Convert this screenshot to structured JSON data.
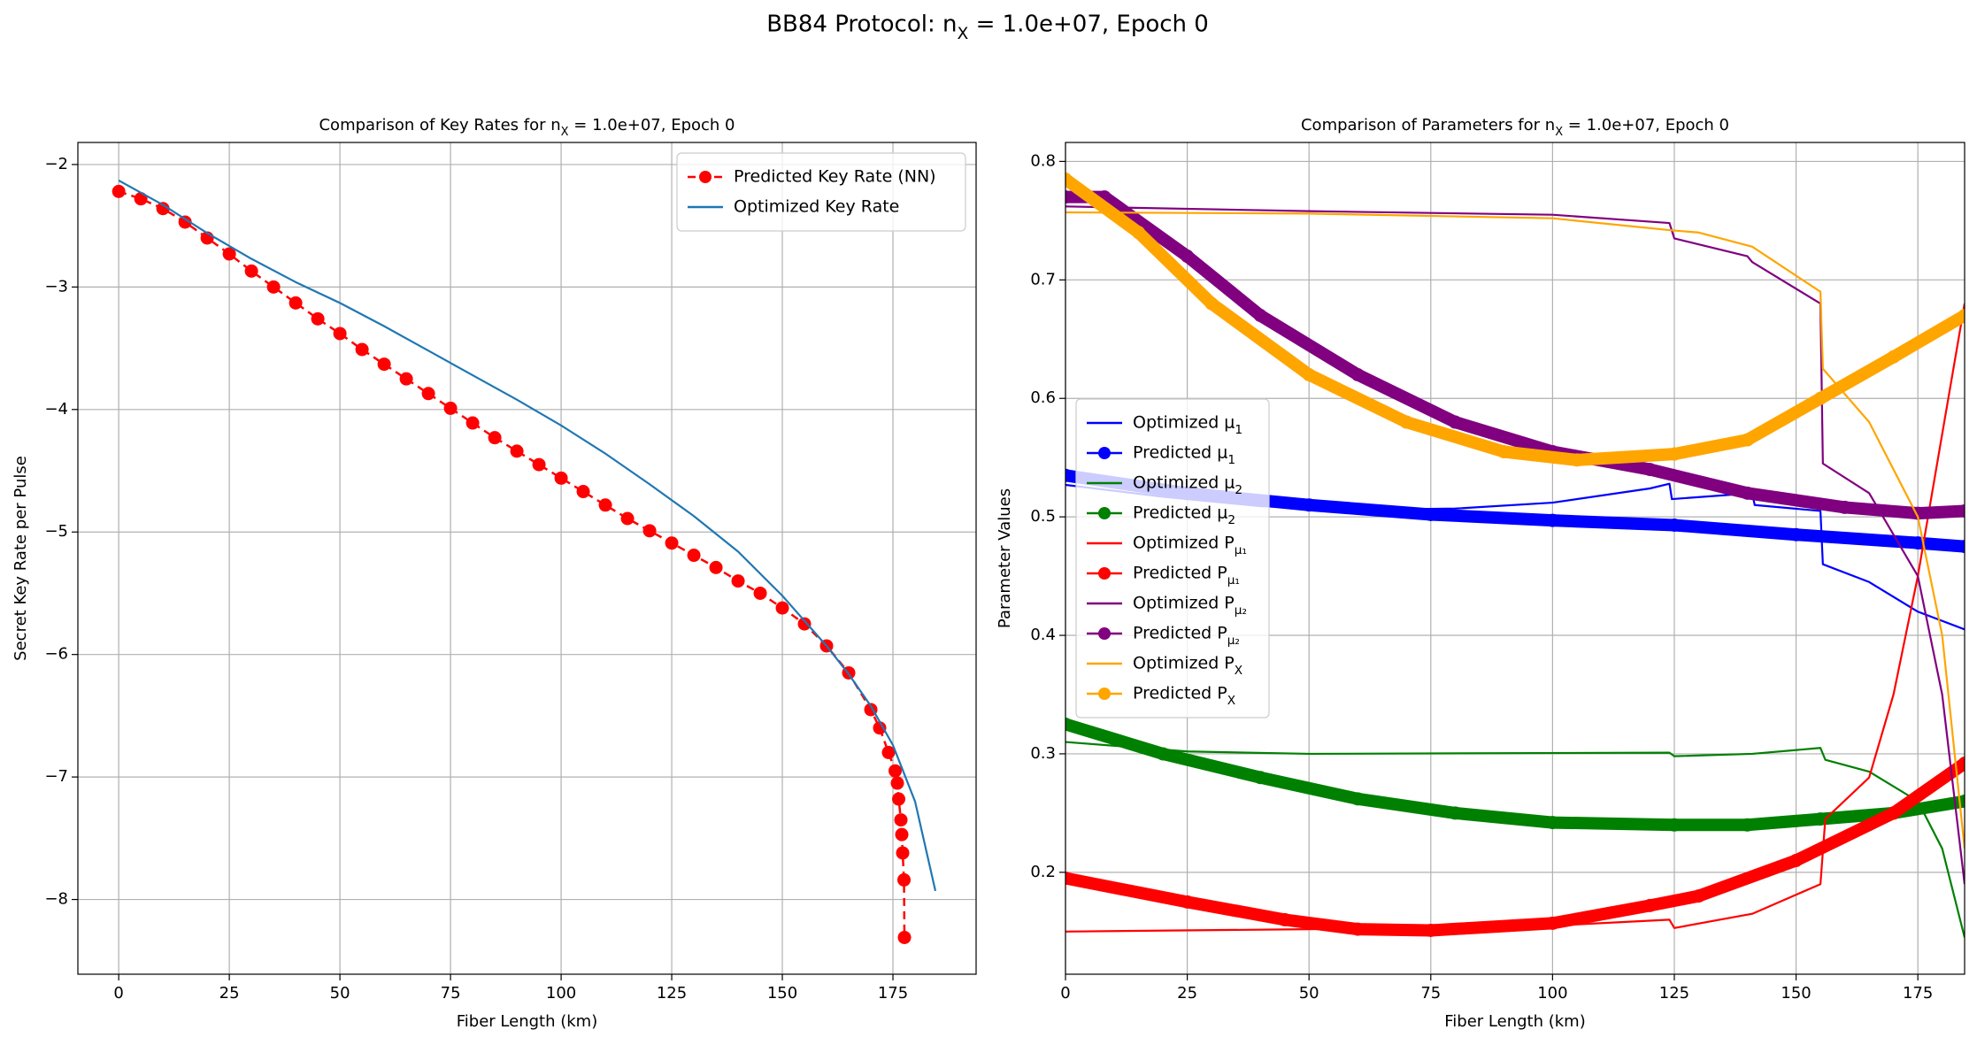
{
  "title": "BB84 Protocol: n_{X} = 1.0e+07, Epoch 0",
  "chart_data": [
    {
      "type": "line",
      "title": "Comparison of Key Rates for n_{X} = 1.0e+07, Epoch 0",
      "xlabel": "Fiber Length (km)",
      "ylabel": "Secret Key Rate per Pulse",
      "xlim": [
        -9.23,
        193.8
      ],
      "ylim": [
        -8.61,
        -1.82
      ],
      "xticks": [
        0,
        25,
        50,
        75,
        100,
        125,
        150,
        175
      ],
      "yticks": [
        {
          "value": -8,
          "label": "−8"
        },
        {
          "value": -7,
          "label": "−7"
        },
        {
          "value": -6,
          "label": "−6"
        },
        {
          "value": -5,
          "label": "−5"
        },
        {
          "value": -4,
          "label": "−4"
        },
        {
          "value": -3,
          "label": "−3"
        },
        {
          "value": -2,
          "label": "−2"
        }
      ],
      "grid": true,
      "legend": "upper right",
      "series": [
        {
          "name": "Predicted Key Rate (NN)",
          "color": "red",
          "linestyle": "dashed",
          "marker": "o",
          "x": [
            0,
            5,
            10,
            15,
            20,
            25,
            30,
            35,
            40,
            45,
            50,
            55,
            60,
            65,
            70,
            75,
            80,
            85,
            90,
            95,
            100,
            105,
            110,
            115,
            120,
            125,
            130,
            135,
            140,
            145,
            150,
            155,
            160,
            165,
            170,
            172,
            174,
            175.5,
            176,
            176.3,
            176.8,
            177,
            177.2,
            177.5,
            177.6
          ],
          "values": [
            -2.22,
            -2.28,
            -2.36,
            -2.47,
            -2.6,
            -2.73,
            -2.87,
            -3.0,
            -3.13,
            -3.26,
            -3.38,
            -3.51,
            -3.63,
            -3.75,
            -3.87,
            -3.99,
            -4.11,
            -4.23,
            -4.34,
            -4.45,
            -4.56,
            -4.67,
            -4.78,
            -4.89,
            -4.99,
            -5.09,
            -5.19,
            -5.29,
            -5.4,
            -5.5,
            -5.62,
            -5.75,
            -5.93,
            -6.15,
            -6.45,
            -6.6,
            -6.8,
            -6.95,
            -7.05,
            -7.18,
            -7.35,
            -7.47,
            -7.62,
            -7.84,
            -8.31
          ]
        },
        {
          "name": "Optimized Key Rate",
          "color": "#1f77b4",
          "linestyle": "solid",
          "x": [
            0,
            10,
            20,
            30,
            40,
            50,
            60,
            70,
            80,
            90,
            100,
            110,
            120,
            130,
            140,
            150,
            160,
            165,
            170,
            175,
            180,
            184.6
          ],
          "values": [
            -2.13,
            -2.33,
            -2.56,
            -2.77,
            -2.96,
            -3.13,
            -3.32,
            -3.52,
            -3.72,
            -3.92,
            -4.13,
            -4.36,
            -4.61,
            -4.87,
            -5.16,
            -5.52,
            -5.93,
            -6.16,
            -6.42,
            -6.74,
            -7.2,
            -7.93
          ]
        }
      ]
    },
    {
      "type": "line",
      "title": "Comparison of Parameters for n_{X} = 1.0e+07, Epoch 0",
      "xlabel": "Fiber Length (km)",
      "ylabel": "Parameter Values",
      "xlim": [
        0,
        184.6
      ],
      "ylim": [
        0.114,
        0.816
      ],
      "xticks": [
        0,
        25,
        50,
        75,
        100,
        125,
        150,
        175
      ],
      "yticks": [
        0.2,
        0.3,
        0.4,
        0.5,
        0.6,
        0.7,
        0.8
      ],
      "grid": true,
      "legend": "center left",
      "series": [
        {
          "name": "Optimized μ_{1}",
          "color": "blue",
          "linestyle": "solid",
          "x": [
            0,
            20,
            40,
            60,
            80,
            100,
            120,
            124,
            124.5,
            141,
            141.5,
            155,
            155.5,
            165,
            175,
            184.6
          ],
          "values": [
            0.527,
            0.517,
            0.509,
            0.506,
            0.507,
            0.512,
            0.524,
            0.528,
            0.515,
            0.52,
            0.51,
            0.505,
            0.46,
            0.445,
            0.42,
            0.405
          ]
        },
        {
          "name": "Predicted μ_{1}",
          "color": "blue",
          "linestyle": "solid",
          "marker": "o",
          "x": [
            0,
            25,
            50,
            75,
            100,
            125,
            150,
            175,
            184.6
          ],
          "values": [
            0.535,
            0.52,
            0.51,
            0.502,
            0.497,
            0.493,
            0.485,
            0.478,
            0.475
          ]
        },
        {
          "name": "Optimized μ_{2}",
          "color": "green",
          "linestyle": "solid",
          "x": [
            0,
            25,
            50,
            124,
            125,
            141,
            155,
            156,
            165,
            175,
            180,
            184.6
          ],
          "values": [
            0.31,
            0.302,
            0.3,
            0.301,
            0.298,
            0.3,
            0.305,
            0.295,
            0.285,
            0.26,
            0.22,
            0.145
          ]
        },
        {
          "name": "Predicted μ_{2}",
          "color": "green",
          "linestyle": "solid",
          "marker": "o",
          "x": [
            0,
            20,
            40,
            60,
            80,
            100,
            125,
            140,
            155,
            170,
            184.6
          ],
          "values": [
            0.325,
            0.3,
            0.28,
            0.262,
            0.25,
            0.242,
            0.24,
            0.24,
            0.245,
            0.25,
            0.26
          ]
        },
        {
          "name": "Optimized P_{μ₁}",
          "color": "red",
          "linestyle": "solid",
          "x": [
            0,
            50,
            100,
            124,
            125,
            141,
            155,
            156,
            165,
            170,
            175,
            180,
            184.6
          ],
          "values": [
            0.15,
            0.152,
            0.155,
            0.16,
            0.153,
            0.165,
            0.19,
            0.245,
            0.28,
            0.35,
            0.45,
            0.57,
            0.68
          ]
        },
        {
          "name": "Predicted P_{μ₁}",
          "color": "red",
          "linestyle": "solid",
          "marker": "o",
          "x": [
            0,
            25,
            45,
            60,
            75,
            100,
            120,
            130,
            150,
            170,
            184.6
          ],
          "values": [
            0.195,
            0.175,
            0.16,
            0.152,
            0.151,
            0.157,
            0.172,
            0.18,
            0.21,
            0.25,
            0.292
          ]
        },
        {
          "name": "Optimized P_{μ₂}",
          "color": "purple",
          "linestyle": "solid",
          "x": [
            0,
            50,
            100,
            124,
            125,
            140,
            141,
            155,
            155.5,
            165,
            175,
            180,
            184.6
          ],
          "values": [
            0.762,
            0.758,
            0.755,
            0.748,
            0.735,
            0.72,
            0.715,
            0.68,
            0.545,
            0.52,
            0.45,
            0.35,
            0.19
          ]
        },
        {
          "name": "Predicted P_{μ₂}",
          "color": "purple",
          "linestyle": "solid",
          "marker": "o",
          "x": [
            0,
            8,
            25,
            40,
            60,
            80,
            100,
            120,
            140,
            160,
            175,
            184.6
          ],
          "values": [
            0.77,
            0.77,
            0.72,
            0.67,
            0.62,
            0.58,
            0.555,
            0.54,
            0.52,
            0.508,
            0.503,
            0.505
          ]
        },
        {
          "name": "Optimized P_{X}",
          "color": "orange",
          "linestyle": "solid",
          "x": [
            0,
            50,
            100,
            124,
            130,
            141,
            155,
            155.5,
            165,
            175,
            180,
            184.6
          ],
          "values": [
            0.757,
            0.756,
            0.752,
            0.742,
            0.74,
            0.728,
            0.69,
            0.625,
            0.58,
            0.5,
            0.4,
            0.22
          ]
        },
        {
          "name": "Predicted P_{X}",
          "color": "orange",
          "linestyle": "solid",
          "marker": "o",
          "x": [
            0,
            15,
            30,
            50,
            70,
            90,
            105,
            125,
            140,
            155,
            170,
            184.6
          ],
          "values": [
            0.785,
            0.74,
            0.68,
            0.62,
            0.58,
            0.555,
            0.548,
            0.553,
            0.565,
            0.6,
            0.635,
            0.67
          ]
        }
      ]
    }
  ]
}
